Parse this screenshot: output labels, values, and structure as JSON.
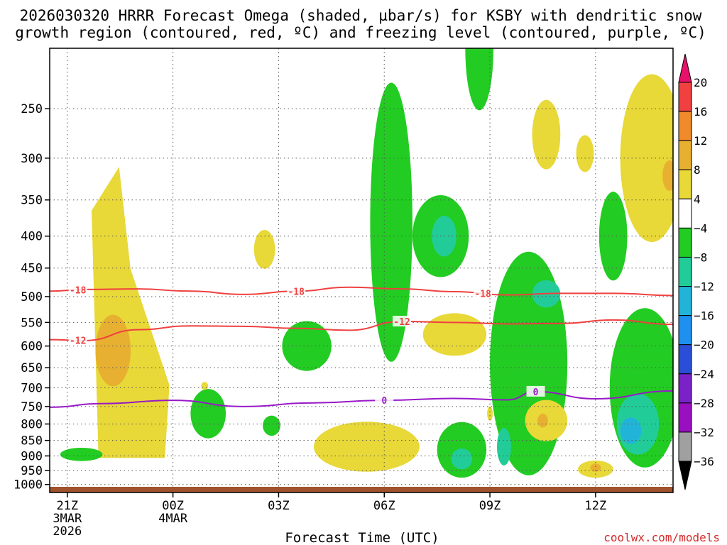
{
  "chart_data": {
    "type": "time-height contour",
    "title_line1": "2026030320 HRRR Forecast Omega (shaded, µbar/s) for KSBY with dendritic snow",
    "title_line2": "growth region (contoured, red, ºC) and freezing level (contoured, purple, ºC)",
    "xlabel": "Forecast Time (UTC)",
    "credit": "coolwx.com/models",
    "y_axis": {
      "unit": "mb",
      "ticks": [
        250,
        300,
        350,
        400,
        450,
        500,
        550,
        600,
        650,
        700,
        750,
        800,
        850,
        900,
        950,
        1000
      ],
      "range": [
        1030,
        200
      ],
      "scale": "log"
    },
    "x_axis": {
      "range_hours": [
        -0.5,
        17.2
      ],
      "ticks": [
        {
          "hour": 0,
          "label": "21Z",
          "sub1": "3MAR",
          "sub2": "2026"
        },
        {
          "hour": 3,
          "label": "00Z",
          "sub1": "4MAR",
          "sub2": ""
        },
        {
          "hour": 6,
          "label": "03Z",
          "sub1": "",
          "sub2": ""
        },
        {
          "hour": 9,
          "label": "06Z",
          "sub1": "",
          "sub2": ""
        },
        {
          "hour": 12,
          "label": "09Z",
          "sub1": "",
          "sub2": ""
        },
        {
          "hour": 15,
          "label": "12Z",
          "sub1": "",
          "sub2": ""
        }
      ]
    },
    "colorbar": {
      "levels": [
        "20",
        "16",
        "12",
        "8",
        "4",
        "−4",
        "−8",
        "−12",
        "−16",
        "−20",
        "−24",
        "−28",
        "−32",
        "−36"
      ],
      "colors": [
        "#e8f0f0",
        "#f04040",
        "#f08a2a",
        "#e8b030",
        "#e8d838",
        "#ffffff",
        "#22cc22",
        "#22cc99",
        "#22b4d8",
        "#1e90f0",
        "#2a4ed8",
        "#7a22c8",
        "#9810c0",
        "#a0a0a0"
      ],
      "top_arrow_color": "#e8106a",
      "bottom_arrow_color": "#000000"
    },
    "contours": {
      "dgz": [
        {
          "label": "-18",
          "color": "#f04040",
          "hours": [
            -0.5,
            0.5,
            2,
            3.5,
            5,
            6.5,
            8,
            9.5,
            11,
            12.5,
            14,
            15.5,
            17.2
          ],
          "pressure": [
            490,
            487,
            486,
            490,
            496,
            490,
            483,
            486,
            491,
            497,
            494,
            494,
            498
          ]
        },
        {
          "label": "-12",
          "color": "#f04040",
          "hours": [
            -0.5,
            0.5,
            2,
            3.5,
            5,
            6.5,
            8,
            9.5,
            11,
            12.5,
            14,
            15.5,
            17.2
          ],
          "pressure": [
            586,
            588,
            565,
            557,
            558,
            562,
            566,
            548,
            550,
            553,
            552,
            545,
            554
          ]
        }
      ],
      "freezing_level": {
        "label": "0",
        "color": "#9818c8",
        "hours": [
          -0.5,
          1,
          3,
          5,
          7,
          9,
          11,
          12.5,
          13.3,
          15,
          17.2
        ],
        "pressure": [
          752,
          742,
          733,
          750,
          740,
          733,
          728,
          732,
          710,
          729,
          708
        ]
      }
    },
    "regions": [
      {
        "id": "R1",
        "omega": "4",
        "fill": "#e8d838",
        "cx": 1.6,
        "cy": 530,
        "rx": 1.3,
        "ry": 260,
        "shape": "tall-upright"
      },
      {
        "id": "R2",
        "omega": "8",
        "fill": "#e8b030",
        "cx": 1.3,
        "cy": 610,
        "rx": 0.5,
        "ry": 80
      },
      {
        "id": "R3",
        "omega": "-4",
        "fill": "#22cc22",
        "cx": 9.2,
        "cy": 380,
        "rx": 0.6,
        "ry": 180
      },
      {
        "id": "R4",
        "omega": "-4",
        "fill": "#22cc22",
        "cx": 10.6,
        "cy": 400,
        "rx": 0.8,
        "ry": 60
      },
      {
        "id": "R5",
        "omega": "-8",
        "fill": "#22cc99",
        "cx": 10.7,
        "cy": 400,
        "rx": 0.35,
        "ry": 30
      },
      {
        "id": "R6",
        "omega": "-4",
        "fill": "#22cc22",
        "cx": 11.7,
        "cy": 200,
        "rx": 0.4,
        "ry": 45
      },
      {
        "id": "R7",
        "omega": "4",
        "fill": "#e8d838",
        "cx": 13.6,
        "cy": 275,
        "rx": 0.4,
        "ry": 35
      },
      {
        "id": "R8",
        "omega": "4",
        "fill": "#e8d838",
        "cx": 14.7,
        "cy": 295,
        "rx": 0.25,
        "ry": 20
      },
      {
        "id": "R9",
        "omega": "-4",
        "fill": "#22cc22",
        "cx": 15.5,
        "cy": 400,
        "rx": 0.4,
        "ry": 65
      },
      {
        "id": "R10",
        "omega": "4",
        "fill": "#e8d838",
        "cx": 16.6,
        "cy": 300,
        "rx": 0.9,
        "ry": 90
      },
      {
        "id": "R11",
        "omega": "8",
        "fill": "#e8b030",
        "cx": 17.1,
        "cy": 320,
        "rx": 0.2,
        "ry": 18
      },
      {
        "id": "R12",
        "omega": "-4",
        "fill": "#22cc22",
        "cx": 13.1,
        "cy": 640,
        "rx": 1.1,
        "ry": 250
      },
      {
        "id": "R13",
        "omega": "-8",
        "fill": "#22cc99",
        "cx": 13.6,
        "cy": 495,
        "rx": 0.4,
        "ry": 25
      },
      {
        "id": "R14",
        "omega": "-8",
        "fill": "#22cc99",
        "cx": 12.4,
        "cy": 870,
        "rx": 0.2,
        "ry": 60
      },
      {
        "id": "R15",
        "omega": "-4",
        "fill": "#22cc22",
        "cx": 16.4,
        "cy": 700,
        "rx": 1.0,
        "ry": 200
      },
      {
        "id": "R16",
        "omega": "-8",
        "fill": "#22cc99",
        "cx": 16.2,
        "cy": 800,
        "rx": 0.6,
        "ry": 90
      },
      {
        "id": "R17",
        "omega": "-12",
        "fill": "#22b4d8",
        "cx": 16.0,
        "cy": 820,
        "rx": 0.3,
        "ry": 40
      },
      {
        "id": "R18",
        "omega": "4",
        "fill": "#e8d838",
        "cx": 11.0,
        "cy": 575,
        "rx": 0.9,
        "ry": 45
      },
      {
        "id": "R19",
        "omega": "-4",
        "fill": "#22cc22",
        "cx": 6.8,
        "cy": 600,
        "rx": 0.7,
        "ry": 55
      },
      {
        "id": "R20",
        "omega": "4",
        "fill": "#e8d838",
        "cx": 5.6,
        "cy": 420,
        "rx": 0.3,
        "ry": 30
      },
      {
        "id": "R21",
        "omega": "-4",
        "fill": "#22cc22",
        "cx": 4.0,
        "cy": 770,
        "rx": 0.5,
        "ry": 70
      },
      {
        "id": "R22",
        "omega": "4",
        "fill": "#e8d838",
        "cx": 8.5,
        "cy": 870,
        "rx": 1.5,
        "ry": 80
      },
      {
        "id": "R23",
        "omega": "-4",
        "fill": "#22cc22",
        "cx": 11.2,
        "cy": 880,
        "rx": 0.7,
        "ry": 90
      },
      {
        "id": "R24",
        "omega": "-8",
        "fill": "#22cc99",
        "cx": 11.2,
        "cy": 910,
        "rx": 0.3,
        "ry": 35
      },
      {
        "id": "R25",
        "omega": "4",
        "fill": "#e8d838",
        "cx": 13.6,
        "cy": 790,
        "rx": 0.6,
        "ry": 60
      },
      {
        "id": "R26",
        "omega": "8",
        "fill": "#e8b030",
        "cx": 13.5,
        "cy": 790,
        "rx": 0.15,
        "ry": 20
      },
      {
        "id": "R27",
        "omega": "4",
        "fill": "#e8d838",
        "cx": 15.0,
        "cy": 945,
        "rx": 0.5,
        "ry": 30
      },
      {
        "id": "R28",
        "omega": "8",
        "fill": "#e8b030",
        "cx": 15.0,
        "cy": 940,
        "rx": 0.15,
        "ry": 14
      },
      {
        "id": "R29",
        "omega": "-4",
        "fill": "#22cc22",
        "cx": 0.4,
        "cy": 895,
        "rx": 0.6,
        "ry": 22
      },
      {
        "id": "R30",
        "omega": "-4",
        "fill": "#22cc22",
        "cx": 5.8,
        "cy": 805,
        "rx": 0.25,
        "ry": 30
      },
      {
        "id": "R31",
        "omega": "4",
        "fill": "#e8d838",
        "cx": 12.0,
        "cy": 770,
        "rx": 0.08,
        "ry": 20
      },
      {
        "id": "R32",
        "omega": "4",
        "fill": "#e8d838",
        "cx": 3.9,
        "cy": 695,
        "rx": 0.1,
        "ry": 10
      }
    ]
  }
}
